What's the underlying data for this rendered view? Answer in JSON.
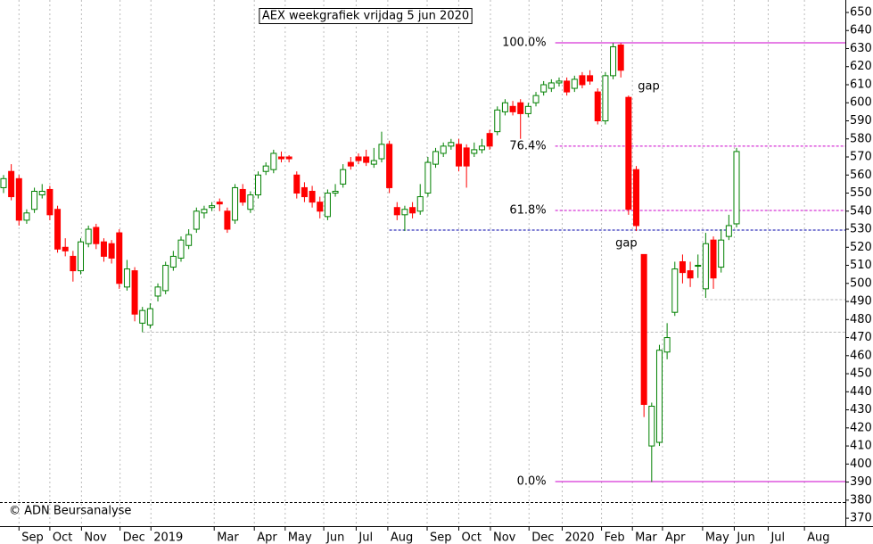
{
  "chart_data": {
    "type": "candlestick",
    "title": "AEX weekgrafiek vrijdag 5 jun 2020",
    "credit": "© ADN Beursanalyse",
    "up_color": "#008000",
    "down_color": "#ff0000",
    "open": [
      553,
      562,
      558,
      535,
      541,
      549,
      552,
      541,
      520,
      515,
      507,
      522,
      531,
      523,
      522,
      528,
      498,
      507,
      478,
      477,
      493,
      496,
      509,
      514,
      521,
      530,
      539,
      542,
      545,
      540,
      535,
      552,
      541,
      549,
      562,
      563,
      570,
      570,
      560,
      553,
      551,
      545,
      537,
      550,
      555,
      567,
      570,
      570,
      566,
      569,
      577,
      542,
      538,
      542,
      540,
      550,
      566,
      572,
      576,
      577,
      575,
      572,
      574,
      583,
      584,
      595,
      598,
      600,
      594,
      600,
      606,
      608,
      611,
      612,
      608,
      615,
      615,
      606,
      590,
      615,
      632,
      603,
      563,
      516,
      410,
      412,
      462,
      484,
      512,
      507,
      510,
      497,
      524,
      509,
      526,
      533
    ],
    "high": [
      560,
      566,
      560,
      541,
      553,
      555,
      554,
      543,
      525,
      518,
      525,
      532,
      533,
      525,
      524,
      530,
      513,
      509,
      487,
      489,
      500,
      512,
      518,
      526,
      530,
      542,
      543,
      545,
      547,
      542,
      555,
      555,
      551,
      562,
      567,
      574,
      573,
      571,
      562,
      556,
      554,
      548,
      552,
      555,
      566,
      570,
      572,
      574,
      575,
      584,
      579,
      545,
      543,
      545,
      555,
      570,
      575,
      578,
      580,
      580,
      577,
      578,
      580,
      585,
      598,
      602,
      601,
      602,
      600,
      606,
      612,
      613,
      614,
      614,
      615,
      617,
      618,
      608,
      617,
      633,
      633,
      604,
      565,
      516,
      434,
      466,
      478,
      512,
      516,
      512,
      516,
      528,
      526,
      530,
      538,
      575
    ],
    "low": [
      550,
      546,
      532,
      533,
      539,
      547,
      535,
      517,
      515,
      501,
      505,
      520,
      519,
      512,
      511,
      497,
      496,
      479,
      473,
      475,
      490,
      494,
      507,
      512,
      519,
      528,
      536,
      540,
      540,
      528,
      533,
      543,
      539,
      547,
      560,
      561,
      567,
      567,
      547,
      545,
      542,
      536,
      535,
      548,
      553,
      563,
      566,
      565,
      564,
      567,
      550,
      535,
      529,
      536,
      538,
      548,
      564,
      570,
      574,
      562,
      553,
      570,
      572,
      574,
      582,
      593,
      593,
      580,
      592,
      598,
      604,
      606,
      609,
      604,
      606,
      608,
      610,
      588,
      588,
      613,
      614,
      538,
      529,
      426,
      390,
      410,
      458,
      482,
      500,
      498,
      503,
      492,
      497,
      506,
      524,
      531
    ],
    "close": [
      558,
      548,
      535,
      539,
      551,
      551,
      538,
      519,
      518,
      507,
      523,
      530,
      522,
      515,
      514,
      500,
      508,
      483,
      485,
      486,
      498,
      510,
      515,
      524,
      527,
      540,
      541,
      543,
      544,
      530,
      553,
      545,
      549,
      560,
      565,
      572,
      569,
      569,
      550,
      548,
      545,
      540,
      550,
      551,
      563,
      565,
      568,
      567,
      568,
      577,
      553,
      538,
      541,
      539,
      548,
      567,
      573,
      576,
      578,
      565,
      565,
      574,
      576,
      576,
      596,
      600,
      595,
      594,
      598,
      604,
      610,
      611,
      612,
      606,
      613,
      610,
      612,
      590,
      615,
      631,
      618,
      541,
      532,
      433,
      432,
      463,
      470,
      508,
      506,
      503,
      510,
      522,
      503,
      524,
      532,
      573
    ],
    "xlim": [
      -0.46,
      109.1
    ],
    "xticks": [
      {
        "value": 2.0,
        "label": "Sep"
      },
      {
        "value": 6.0,
        "label": "Oct"
      },
      {
        "value": 10.1,
        "label": "Nov"
      },
      {
        "value": 15.1,
        "label": "Dec"
      },
      {
        "value": 19.1,
        "label": "2019"
      },
      {
        "value": 27.3,
        "label": "Mar"
      },
      {
        "value": 32.5,
        "label": "Apr"
      },
      {
        "value": 36.5,
        "label": "May"
      },
      {
        "value": 41.5,
        "label": "Jun"
      },
      {
        "value": 45.7,
        "label": "Jul"
      },
      {
        "value": 49.8,
        "label": "Aug"
      },
      {
        "value": 54.9,
        "label": "Sep"
      },
      {
        "value": 59.0,
        "label": "Oct"
      },
      {
        "value": 63.1,
        "label": "Nov"
      },
      {
        "value": 68.1,
        "label": "Dec"
      },
      {
        "value": 72.4,
        "label": "2020"
      },
      {
        "value": 77.5,
        "label": "Feb"
      },
      {
        "value": 81.5,
        "label": "Mar"
      },
      {
        "value": 85.4,
        "label": "Apr"
      },
      {
        "value": 90.6,
        "label": "May"
      },
      {
        "value": 94.7,
        "label": "Jun"
      },
      {
        "value": 99.1,
        "label": "Jul"
      },
      {
        "value": 103.8,
        "label": "Aug"
      }
    ],
    "ylim": [
      365.6,
      656.9
    ],
    "yticks": [
      370,
      380,
      390,
      400,
      410,
      420,
      430,
      440,
      450,
      460,
      470,
      480,
      490,
      500,
      510,
      520,
      530,
      540,
      550,
      560,
      570,
      580,
      590,
      600,
      610,
      620,
      630,
      640,
      650
    ],
    "fib_levels": [
      {
        "label": "100.0%",
        "value": 633.2,
        "start": 71.5,
        "dashed": false
      },
      {
        "label": "76.4%",
        "value": 576,
        "start": 71.5,
        "dashed": true
      },
      {
        "label": "61.8%",
        "value": 540.4,
        "start": 71.5,
        "dashed": true
      },
      {
        "label": "0.0%",
        "value": 390.3,
        "start": 71.5,
        "dashed": false
      }
    ],
    "fib_color": "#cc00cc",
    "support_lines": [
      {
        "value": 529.5,
        "start": 50,
        "color": "#0000aa"
      },
      {
        "value": 473,
        "start": 18,
        "color": "#bbbbbb"
      },
      {
        "value": 491,
        "start": 91,
        "color": "#bbbbbb"
      }
    ],
    "notes": [
      {
        "label": "gap",
        "value": 609,
        "x": 82.2,
        "color": "#000000"
      },
      {
        "label": "gap",
        "value": 522,
        "x": 79.3,
        "color": "#bbbbbb"
      }
    ]
  }
}
